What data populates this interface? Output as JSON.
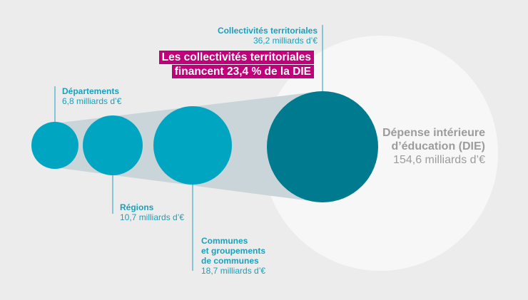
{
  "colors": {
    "background": "#ececec",
    "die_circle": "#f7f7f7",
    "collectivites_circle": "#007a8e",
    "sub_circles": "#00a6c1",
    "funnel": "#c9d5d9",
    "label_text": "#1aa0bb",
    "callout_bg": "#c0007a",
    "die_text": "#9c9c9c"
  },
  "die": {
    "name_line1": "Dépense intérieure",
    "name_line2": "d’éducation (DIE)",
    "value": "154,6 milliards d’€",
    "amount": 154.6
  },
  "collectivites": {
    "name": "Collectivités territoriales",
    "value": "36,2 milliards d’€",
    "amount": 36.2
  },
  "callout": {
    "line1": "Les collectivités territoriales",
    "line2": "financent 23,4 % de la DIE"
  },
  "components": [
    {
      "name_lines": [
        "Départements"
      ],
      "value": "6,8 milliards d’€",
      "amount": 6.8
    },
    {
      "name_lines": [
        "Régions"
      ],
      "value": "10,7 milliards d’€",
      "amount": 10.7
    },
    {
      "name_lines": [
        "Communes",
        "et groupements",
        "de communes"
      ],
      "value": "18,7 milliards d’€",
      "amount": 18.7
    }
  ]
}
